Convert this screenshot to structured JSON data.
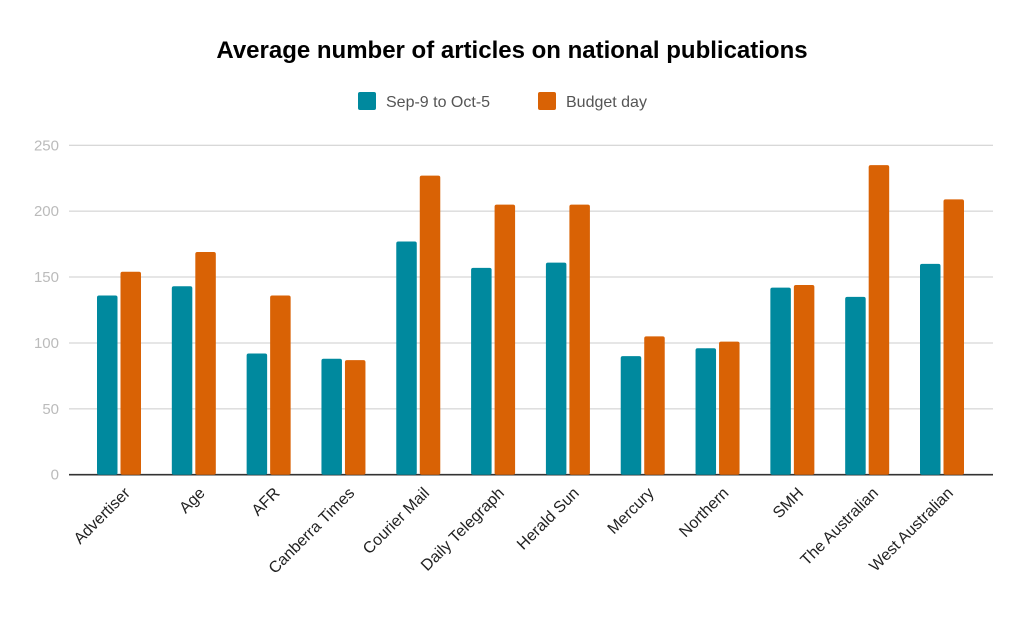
{
  "chart_data": {
    "type": "bar",
    "title": "Average number of articles on national publications",
    "xlabel": "",
    "ylabel": "",
    "ylim": [
      0,
      250
    ],
    "yticks": [
      0,
      50,
      100,
      150,
      200,
      250
    ],
    "grid": true,
    "legend_position": "top",
    "categories": [
      "Advertiser",
      "Age",
      "AFR",
      "Canberra Times",
      "Courier Mail",
      "Daily Telegraph",
      "Herald Sun",
      "Mercury",
      "Northern",
      "SMH",
      "The Australian",
      "West Australian"
    ],
    "series": [
      {
        "name": "Sep-9 to Oct-5",
        "color": "#00899e",
        "values": [
          136,
          143,
          92,
          88,
          177,
          157,
          161,
          90,
          96,
          142,
          135,
          160
        ]
      },
      {
        "name": "Budget day",
        "color": "#d96205",
        "values": [
          154,
          169,
          136,
          87,
          227,
          205,
          205,
          105,
          101,
          144,
          235,
          209
        ]
      }
    ]
  }
}
